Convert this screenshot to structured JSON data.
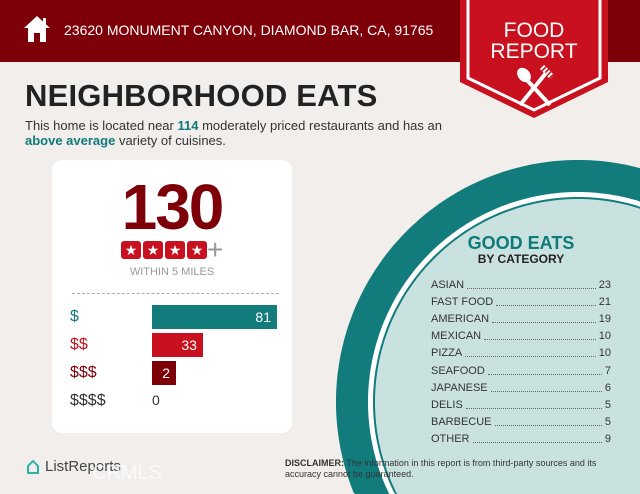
{
  "header": {
    "address": "23620 MONUMENT CANYON, DIAMOND BAR, CA, 91765",
    "badge_line1": "FOOD",
    "badge_line2": "REPORT"
  },
  "title": "NEIGHBORHOOD EATS",
  "description": {
    "pre": "This home is located near ",
    "count": "114",
    "mid": " moderately priced restaurants and has an ",
    "variety": "above average",
    "post": " variety of cuisines."
  },
  "summary": {
    "total": "130",
    "rating_stars": 4,
    "plus": "+",
    "radius": "WITHIN 5 MILES"
  },
  "price_levels": [
    {
      "label": "$",
      "value": 81,
      "color": "#127c7c"
    },
    {
      "label": "$$",
      "value": 33,
      "color": "#c8101e"
    },
    {
      "label": "$$$",
      "value": 2,
      "color": "#7d0008"
    },
    {
      "label": "$$$$",
      "value": 0,
      "color": "#333333"
    }
  ],
  "categories": {
    "title": "GOOD EATS",
    "subtitle": "BY CATEGORY",
    "items": [
      {
        "name": "ASIAN",
        "count": "23"
      },
      {
        "name": "FAST FOOD",
        "count": "21"
      },
      {
        "name": "AMERICAN",
        "count": "19"
      },
      {
        "name": "MEXICAN",
        "count": "10"
      },
      {
        "name": "PIZZA",
        "count": "10"
      },
      {
        "name": "SEAFOOD",
        "count": "7"
      },
      {
        "name": "JAPANESE",
        "count": "6"
      },
      {
        "name": "DELIS",
        "count": "5"
      },
      {
        "name": "BARBECUE",
        "count": "5"
      },
      {
        "name": "OTHER",
        "count": "9"
      }
    ]
  },
  "footer": {
    "logo": "ListReports",
    "disclaimer_label": "DISCLAIMER:",
    "disclaimer": " The information in this report is from third-party sources and its accuracy cannot be guaranteed.",
    "watermark": "CRMLS"
  },
  "colors": {
    "brand_red": "#7d0008",
    "accent_red": "#c8101e",
    "teal": "#127c7c",
    "light_teal": "#c9e2e0"
  }
}
